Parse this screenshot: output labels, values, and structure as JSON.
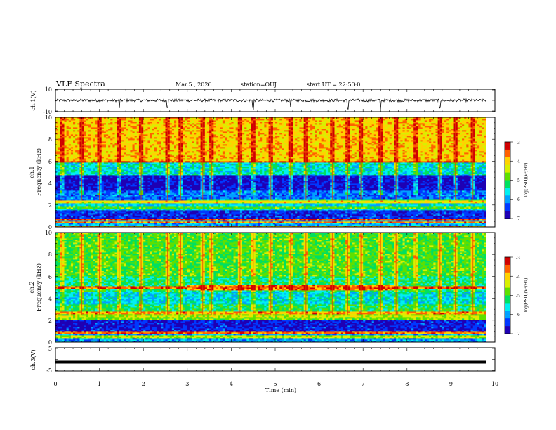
{
  "header": {
    "title": "VLF Spectra",
    "date": "Mar.5 , 2026",
    "station": "station=OUJ",
    "start": "start UT = 22:50:0"
  },
  "colors": {
    "colormap": [
      "#1e00b4",
      "#0038ff",
      "#00a0ff",
      "#00f0f0",
      "#00e060",
      "#5ee000",
      "#d8f000",
      "#ffd200",
      "#ff6000",
      "#d00000"
    ],
    "trace": "#000000"
  },
  "chart_data": [
    {
      "type": "line",
      "panel": "ch.1",
      "ylabel": "ch.1(V)",
      "ylim": [
        -10,
        10
      ],
      "yticks": [
        "10",
        "-10"
      ],
      "series": [
        {
          "baseline": 0,
          "noise_amplitude": 1.2,
          "spike_times_min": [
            1.45,
            2.55,
            4.5,
            5.35,
            6.65,
            7.4,
            8.75
          ]
        }
      ]
    },
    {
      "type": "heatmap",
      "panel": "ch.1",
      "ylabel": "Frequency (kHz)",
      "side_label": "ch.1",
      "xlim": [
        0,
        10
      ],
      "ylim": [
        0,
        10
      ],
      "yticks": [
        "0",
        "2",
        "4",
        "6",
        "8",
        "10"
      ],
      "data_end_min": 9.8,
      "colorbar": {
        "label": "log(PSD)(V²/Hz)",
        "range": [
          -7,
          -3
        ],
        "ticks": [
          "-3",
          "-4",
          "-5",
          "-6",
          "-7"
        ]
      },
      "bands_khz": [
        {
          "from": 0,
          "to": 10,
          "start": 0,
          "end": 9.8,
          "level": 0.5
        },
        {
          "from": 6,
          "to": 10,
          "start": 0,
          "end": 9.8,
          "level": 0.74
        },
        {
          "from": 4.8,
          "to": 6,
          "start": 0,
          "end": 9.8,
          "level": 0.36
        },
        {
          "from": 3.3,
          "to": 4.8,
          "start": 0,
          "end": 9.8,
          "level": 0.06
        },
        {
          "from": 2.6,
          "to": 3.3,
          "start": 0,
          "end": 9.8,
          "level": 0.2
        },
        {
          "from": 2.2,
          "to": 2.6,
          "start": 0,
          "end": 3,
          "level": 0.18
        },
        {
          "from": 2.2,
          "to": 2.6,
          "start": 3,
          "end": 7.7,
          "level": 0.42
        },
        {
          "from": 1.6,
          "to": 2.2,
          "start": 0,
          "end": 9.8,
          "level": 0.34
        },
        {
          "from": 0.8,
          "to": 1.6,
          "start": 0,
          "end": 9.8,
          "level": 0.12
        },
        {
          "from": 0,
          "to": 0.8,
          "start": 0,
          "end": 9.8,
          "level": 0.28
        }
      ],
      "lines_khz": [
        {
          "f": 6.0,
          "level": 0.88
        },
        {
          "f": 2.3,
          "level": 0.7
        },
        {
          "f": 1.8,
          "level": 0.52
        },
        {
          "f": 0.7,
          "level": 0.9
        },
        {
          "f": 0.4,
          "level": 0.82
        },
        {
          "f": 0.1,
          "level": 0.78
        }
      ],
      "events_min": [
        0.15,
        0.6,
        1.0,
        1.45,
        1.95,
        2.55,
        2.85,
        3.35,
        3.55,
        4.2,
        4.5,
        4.9,
        5.35,
        5.7,
        6.3,
        6.65,
        6.95,
        7.4,
        7.75,
        8.2,
        8.75,
        9.1,
        9.5
      ]
    },
    {
      "type": "heatmap",
      "panel": "ch.2",
      "ylabel": "Frequency (kHz)",
      "side_label": "ch.2",
      "xlim": [
        0,
        10
      ],
      "ylim": [
        0,
        10
      ],
      "yticks": [
        "0",
        "2",
        "4",
        "6",
        "8",
        "10"
      ],
      "data_end_min": 9.8,
      "colorbar": {
        "label": "log(PSD)(V²/Hz)",
        "range": [
          -7,
          -3
        ],
        "ticks": [
          "-3",
          "-4",
          "-5",
          "-6",
          "-7"
        ]
      },
      "bands_khz": [
        {
          "from": 0,
          "to": 10,
          "start": 0,
          "end": 9.8,
          "level": 0.5
        },
        {
          "from": 6,
          "to": 10,
          "start": 0,
          "end": 9.8,
          "level": 0.52
        },
        {
          "from": 4.6,
          "to": 6,
          "start": 0,
          "end": 9.8,
          "level": 0.44
        },
        {
          "from": 4.7,
          "to": 5.3,
          "start": 3,
          "end": 7.7,
          "level": 0.82
        },
        {
          "from": 3.5,
          "to": 4.6,
          "start": 0,
          "end": 9.8,
          "level": 0.34
        },
        {
          "from": 2.8,
          "to": 3.5,
          "start": 0,
          "end": 9.8,
          "level": 0.46
        },
        {
          "from": 2.0,
          "to": 2.8,
          "start": 0,
          "end": 9.8,
          "level": 0.58
        },
        {
          "from": 1.0,
          "to": 2.0,
          "start": 0,
          "end": 9.8,
          "level": 0.1
        },
        {
          "from": 1.4,
          "to": 2.0,
          "start": 0,
          "end": 0.9,
          "level": 0.04
        },
        {
          "from": 0,
          "to": 1.0,
          "start": 0,
          "end": 9.8,
          "level": 0.26
        }
      ],
      "lines_khz": [
        {
          "f": 5.0,
          "level": 0.86
        },
        {
          "f": 2.7,
          "level": 0.8
        },
        {
          "f": 2.4,
          "level": 0.66
        },
        {
          "f": 0.9,
          "level": 0.84
        },
        {
          "f": 0.5,
          "level": 0.62
        }
      ],
      "events_min": [
        0.15,
        0.6,
        1.0,
        1.45,
        1.95,
        2.55,
        2.85,
        3.35,
        3.55,
        4.2,
        4.5,
        4.9,
        5.35,
        5.7,
        6.3,
        6.65,
        6.95,
        7.4,
        7.75,
        8.2,
        8.75,
        9.1,
        9.5
      ]
    },
    {
      "type": "line",
      "panel": "ch.3",
      "ylabel": "ch.3(V)",
      "ylim": [
        -5,
        5
      ],
      "yticks": [
        "5",
        "-5"
      ],
      "series": [
        {
          "constant": -1.2
        }
      ]
    }
  ],
  "xaxis": {
    "label": "Time (min)",
    "ticks": [
      "0",
      "1",
      "2",
      "3",
      "4",
      "5",
      "6",
      "7",
      "8",
      "9",
      "10"
    ]
  }
}
